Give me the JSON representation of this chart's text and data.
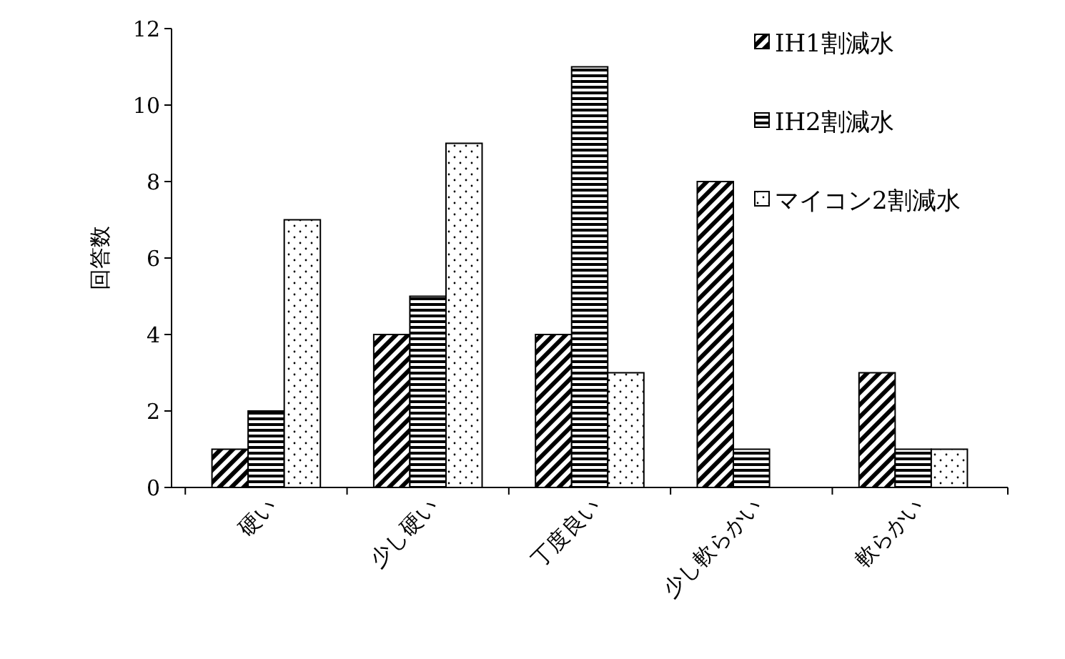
{
  "chart_data": {
    "type": "bar",
    "ylabel": "回答数",
    "categories": [
      "硬い",
      "少し硬い",
      "丁度良い",
      "少し軟らかい",
      "軟らかい"
    ],
    "series": [
      {
        "name": "IH1割減水",
        "color": "#000000",
        "values": [
          1,
          4,
          4,
          8,
          3
        ]
      },
      {
        "name": "IH2割減水",
        "color": "#000000",
        "values": [
          2,
          5,
          11,
          1,
          1
        ]
      },
      {
        "name": "マイコン2割減水",
        "color": "#000000",
        "values": [
          7,
          9,
          3,
          null,
          1
        ]
      }
    ],
    "ylim": [
      0,
      12
    ],
    "yticks": [
      0,
      2,
      4,
      6,
      8,
      10,
      12
    ],
    "grid": false,
    "legend": "top right"
  }
}
